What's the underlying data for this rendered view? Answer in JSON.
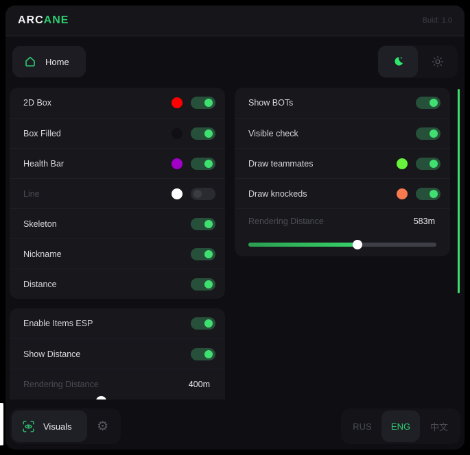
{
  "header": {
    "logo_primary": "ARC",
    "logo_accent": "ANE",
    "build_label": "Buid: 1.0"
  },
  "nav": {
    "home_label": "Home"
  },
  "colors": {
    "accent_green": "#2ecc71",
    "toggle_knob_on": "#3fe070",
    "scrollbar_green": "#3fdd6e"
  },
  "panels": {
    "player_esp": {
      "rows": [
        {
          "label": "2D Box",
          "swatch": "#ff0000",
          "enabled": true
        },
        {
          "label": "Box Filled",
          "swatch": "#101014",
          "enabled": true
        },
        {
          "label": "Health Bar",
          "swatch": "#a000c8",
          "enabled": true
        },
        {
          "label": "Line",
          "swatch": "#ffffff",
          "enabled": false
        },
        {
          "label": "Skeleton",
          "enabled": true
        },
        {
          "label": "Nickname",
          "enabled": true
        },
        {
          "label": "Distance",
          "enabled": true
        }
      ]
    },
    "bots": {
      "rows": [
        {
          "label": "Show BOTs",
          "enabled": true
        },
        {
          "label": "Visible check",
          "enabled": true
        },
        {
          "label": "Draw teammates",
          "swatch": "#67f33b",
          "enabled": true
        },
        {
          "label": "Draw knockeds",
          "swatch": "#f87a4e",
          "enabled": true
        }
      ],
      "slider": {
        "label": "Rendering Distance",
        "value": "583m",
        "fill_pct": 58
      }
    },
    "items_esp": {
      "rows": [
        {
          "label": "Enable Items ESP",
          "enabled": true
        },
        {
          "label": "Show Distance",
          "enabled": true
        }
      ],
      "slider": {
        "label": "Rendering Distance",
        "value": "400m",
        "fill_pct": 40
      }
    }
  },
  "footer": {
    "visuals_label": "Visuals",
    "languages": [
      {
        "label": "RUS"
      },
      {
        "label": "ENG"
      },
      {
        "label": "中文"
      }
    ]
  }
}
